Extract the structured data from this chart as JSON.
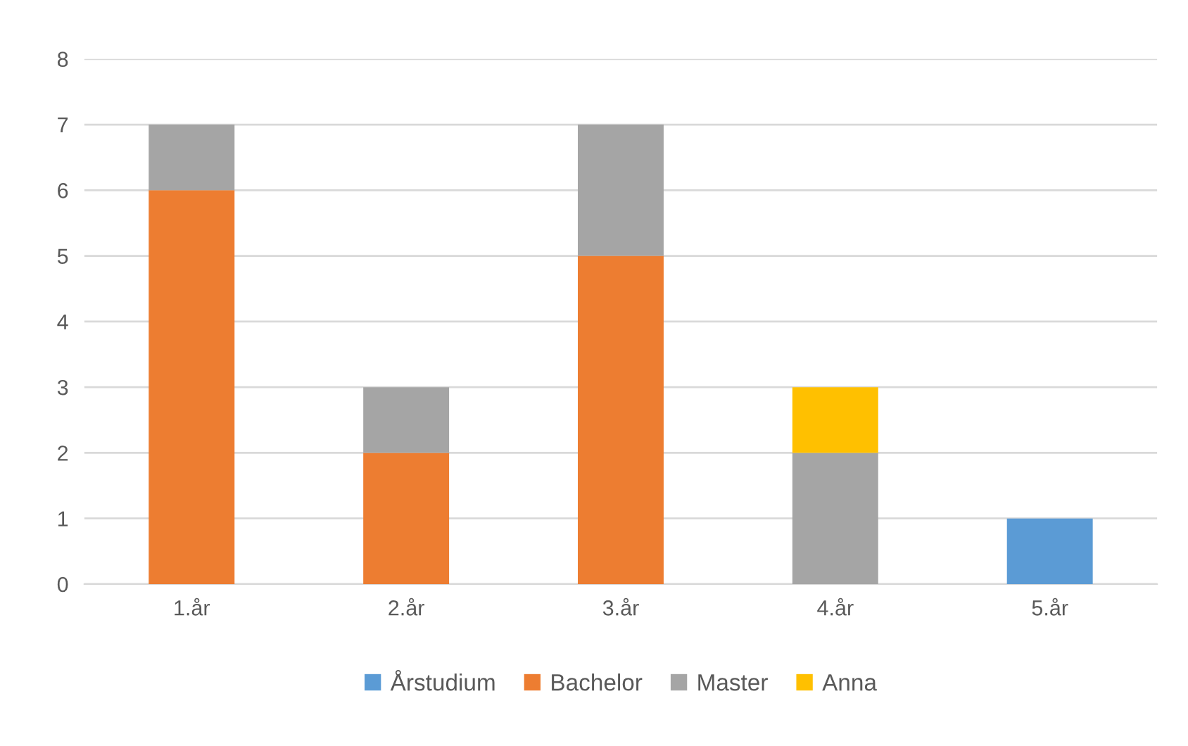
{
  "chart_data": {
    "type": "bar",
    "stacked": true,
    "categories": [
      "1.år",
      "2.år",
      "3.år",
      "4.år",
      "5.år"
    ],
    "series": [
      {
        "name": "Årstudium",
        "color": "#5b9bd5",
        "values": [
          null,
          null,
          null,
          null,
          1
        ]
      },
      {
        "name": "Bachelor",
        "color": "#ed7d31",
        "values": [
          6,
          2,
          5,
          null,
          null
        ]
      },
      {
        "name": "Master",
        "color": "#a5a5a5",
        "values": [
          1,
          1,
          2,
          2,
          null
        ]
      },
      {
        "name": "Anna",
        "color": "#ffc000",
        "values": [
          null,
          null,
          null,
          1,
          null
        ]
      }
    ],
    "ylim": [
      0,
      8
    ],
    "yticks": [
      0,
      1,
      2,
      3,
      4,
      5,
      6,
      7,
      8
    ],
    "grid": "y",
    "legend": "bottom"
  }
}
